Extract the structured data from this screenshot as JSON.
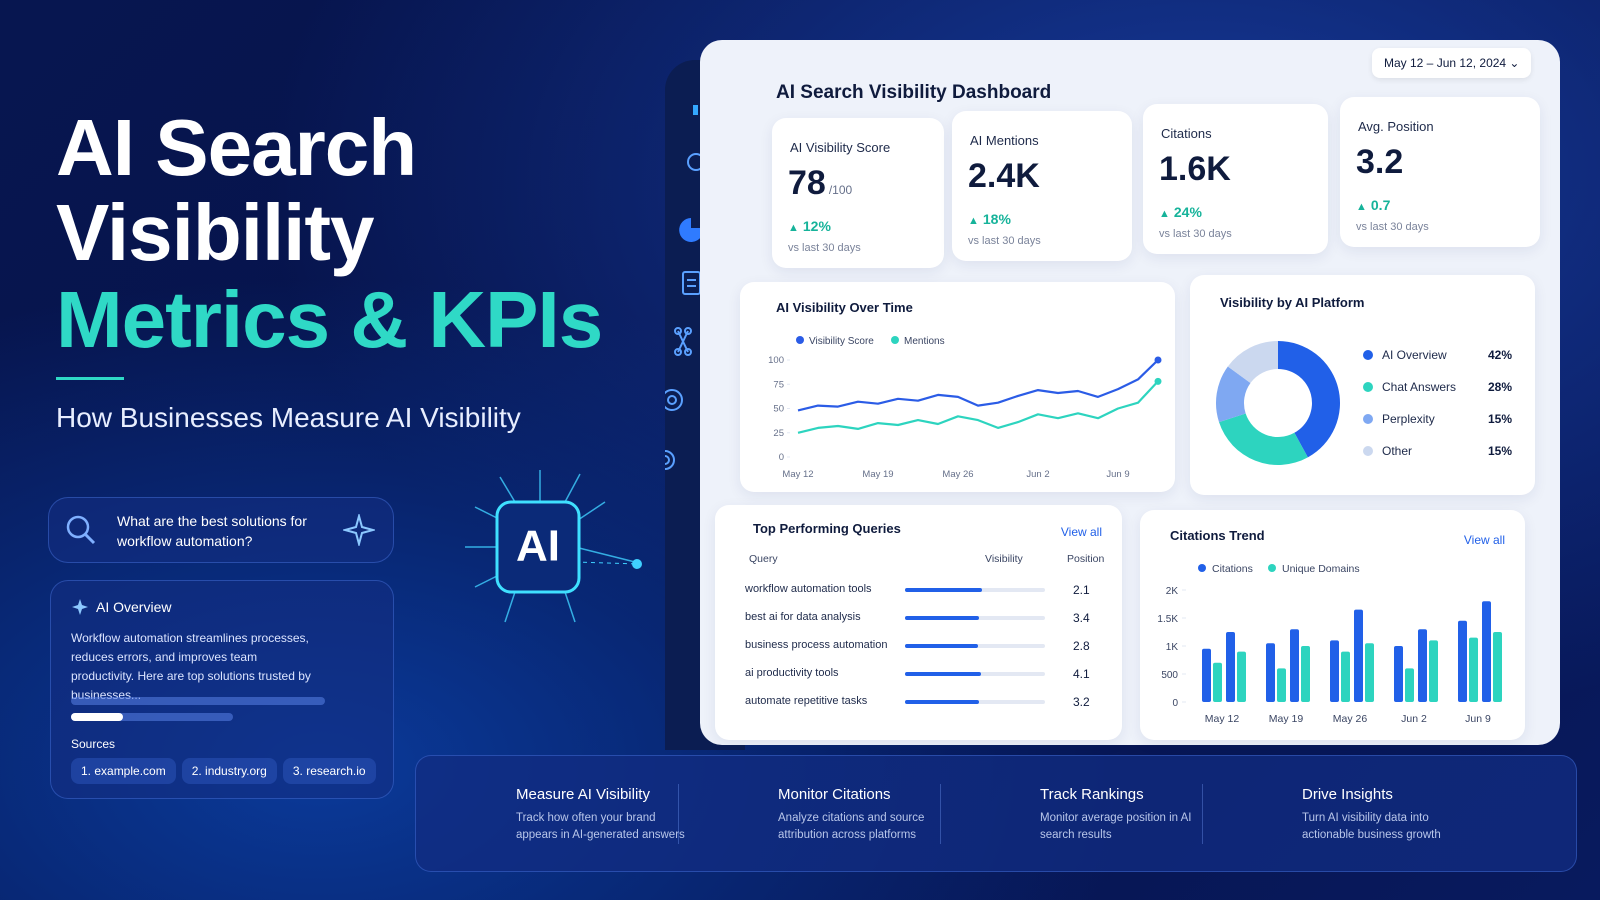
{
  "hero": {
    "title_lines": [
      "AI Search",
      "Visibility",
      "Metrics & KPIs"
    ],
    "subtitle": "How Businesses Measure AI Visibility"
  },
  "search_box": {
    "query": "What are the best solutions for workflow automation?"
  },
  "ai_badge": "AI",
  "ai_overview": {
    "title": "AI Overview",
    "text": "Workflow automation streamlines processes, reduces errors, and improves team productivity. Here are top solutions trusted by businesses...",
    "sources_label": "Sources",
    "sources": [
      "1. example.com",
      "2. industry.org",
      "3. research.io"
    ]
  },
  "dashboard": {
    "title": "AI Search Visibility Dashboard",
    "date_range": "May 12 – Jun 12, 2024",
    "kpis": [
      {
        "label": "AI Visibility Score",
        "value": "78",
        "unit": "/100",
        "change": "12%",
        "note": "vs last 30 days"
      },
      {
        "label": "AI Mentions",
        "value": "2.4K",
        "change": "18%",
        "note": "vs last 30 days"
      },
      {
        "label": "Citations",
        "value": "1.6K",
        "change": "24%",
        "note": "vs last 30 days"
      },
      {
        "label": "Avg. Position",
        "value": "3.2",
        "change": "0.7",
        "note": "vs last 30 days"
      }
    ],
    "visibility_chart": {
      "type": "line",
      "title": "AI Visibility Over Time",
      "categories": [
        "May 12",
        null,
        null,
        null,
        "May 19",
        null,
        null,
        null,
        "May 26",
        null,
        null,
        null,
        "Jun 2",
        null,
        null,
        null,
        "Jun 9",
        null,
        null
      ],
      "series": [
        {
          "name": "Visibility Score",
          "color": "#2b5ce6",
          "values": [
            48,
            53,
            52,
            57,
            55,
            60,
            58,
            64,
            62,
            53,
            56,
            63,
            69,
            66,
            68,
            62,
            70,
            80,
            100
          ]
        },
        {
          "name": "Mentions",
          "color": "#2dd4bf",
          "values": [
            25,
            30,
            32,
            29,
            35,
            33,
            38,
            34,
            42,
            38,
            30,
            36,
            44,
            40,
            45,
            40,
            50,
            56,
            78
          ]
        }
      ],
      "ylim": [
        0,
        100
      ],
      "yticks": [
        0,
        25,
        50,
        75,
        100
      ]
    },
    "platform_chart": {
      "type": "pie",
      "title": "Visibility by AI Platform",
      "categories": [
        "AI Overview",
        "Chat Answers",
        "Perplexity",
        "Other"
      ],
      "values": [
        42,
        28,
        15,
        15
      ],
      "value_labels": [
        "42%",
        "28%",
        "15%",
        "15%"
      ],
      "colors": [
        "#2160e8",
        "#2dd4bf",
        "#7fa8f2",
        "#cbd8ef"
      ]
    },
    "queries": {
      "title": "Top Performing Queries",
      "view_all": "View all",
      "headers": [
        "Query",
        "Visibility",
        "Position"
      ],
      "visibility_max": 100,
      "rows": [
        {
          "query": "workflow automation tools",
          "visibility": 55,
          "position": 2.1
        },
        {
          "query": "best ai for data analysis",
          "visibility": 53,
          "position": 3.4
        },
        {
          "query": "business process automation",
          "visibility": 52,
          "position": 2.8
        },
        {
          "query": "ai productivity tools",
          "visibility": 54,
          "position": 4.1
        },
        {
          "query": "automate repetitive tasks",
          "visibility": 53,
          "position": 3.2
        }
      ]
    },
    "citations_chart": {
      "type": "bar",
      "title": "Citations Trend",
      "view_all": "View all",
      "categories": [
        "May 12",
        null,
        "May 19",
        null,
        "May 26",
        null,
        "Jun 2",
        null,
        "Jun 9",
        null
      ],
      "series": [
        {
          "name": "Citations",
          "color": "#2160e8",
          "values": [
            950,
            1250,
            1050,
            1300,
            1100,
            1650,
            1000,
            1300,
            1450,
            1800
          ]
        },
        {
          "name": "Unique Domains",
          "color": "#2dd4bf",
          "values": [
            700,
            900,
            600,
            1000,
            900,
            1050,
            600,
            1100,
            1150,
            1250
          ]
        }
      ],
      "ylim": [
        0,
        2000
      ],
      "yticks": [
        0,
        500,
        {
          "value": 1000,
          "label": "1K"
        },
        {
          "value": 1500,
          "label": "1.5K"
        },
        {
          "value": 2000,
          "label": "2K"
        }
      ]
    }
  },
  "features": [
    {
      "title": "Measure AI Visibility",
      "text": "Track how often your brand appears in AI-generated answers"
    },
    {
      "title": "Monitor Citations",
      "text": "Analyze citations and source attribution across platforms"
    },
    {
      "title": "Track Rankings",
      "text": "Monitor average position in AI search results"
    },
    {
      "title": "Drive Insights",
      "text": "Turn AI visibility data into actionable business growth"
    }
  ]
}
